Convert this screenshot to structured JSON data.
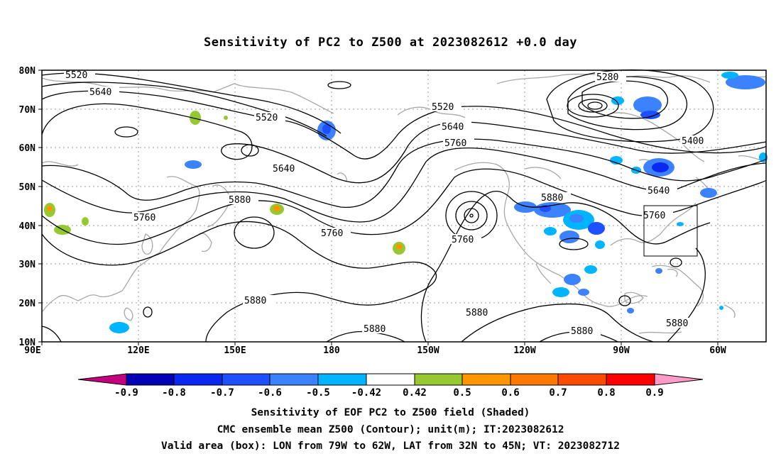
{
  "title": "Sensitivity of PC2 to Z500 at 2023082612 +0.0 day",
  "lat_labels": [
    "80N",
    "70N",
    "60N",
    "50N",
    "40N",
    "30N",
    "20N",
    "10N"
  ],
  "lon_labels": [
    "90E",
    "120E",
    "150E",
    "180",
    "150W",
    "120W",
    "90W",
    "60W"
  ],
  "contour_labels": [
    "5520",
    "5640",
    "5520",
    "5640",
    "5760",
    "5880",
    "5760",
    "5760",
    "5520",
    "5640",
    "5760",
    "5280",
    "5400",
    "5640",
    "5760",
    "5880",
    "5880",
    "5880",
    "5880",
    "5880",
    "5880"
  ],
  "colorbar": {
    "colors": [
      "#c4007f",
      "#0000b4",
      "#0a28f0",
      "#1e50ff",
      "#3c82ff",
      "#00b4ff",
      "#ffffff",
      "#96c832",
      "#ff9600",
      "#ff7800",
      "#ff4b00",
      "#ff0000",
      "#ff9bc8"
    ],
    "labels": [
      "-0.9",
      "-0.8",
      "-0.7",
      "-0.6",
      "-0.5",
      "-0.42",
      "0.42",
      "0.5",
      "0.6",
      "0.7",
      "0.8",
      "0.9"
    ]
  },
  "footer": {
    "line1": "Sensitivity of EOF PC2 to Z500 field (Shaded)",
    "line2": "CMC ensemble mean Z500 (Contour); unit(m); IT:2023082612",
    "line3": "Valid area (box): LON from 79W to 62W, LAT from 32N to 45N; VT: 2023082712"
  },
  "colors": {
    "contour": "#000000",
    "coast": "#a0a0a0",
    "grid": "#999999"
  }
}
